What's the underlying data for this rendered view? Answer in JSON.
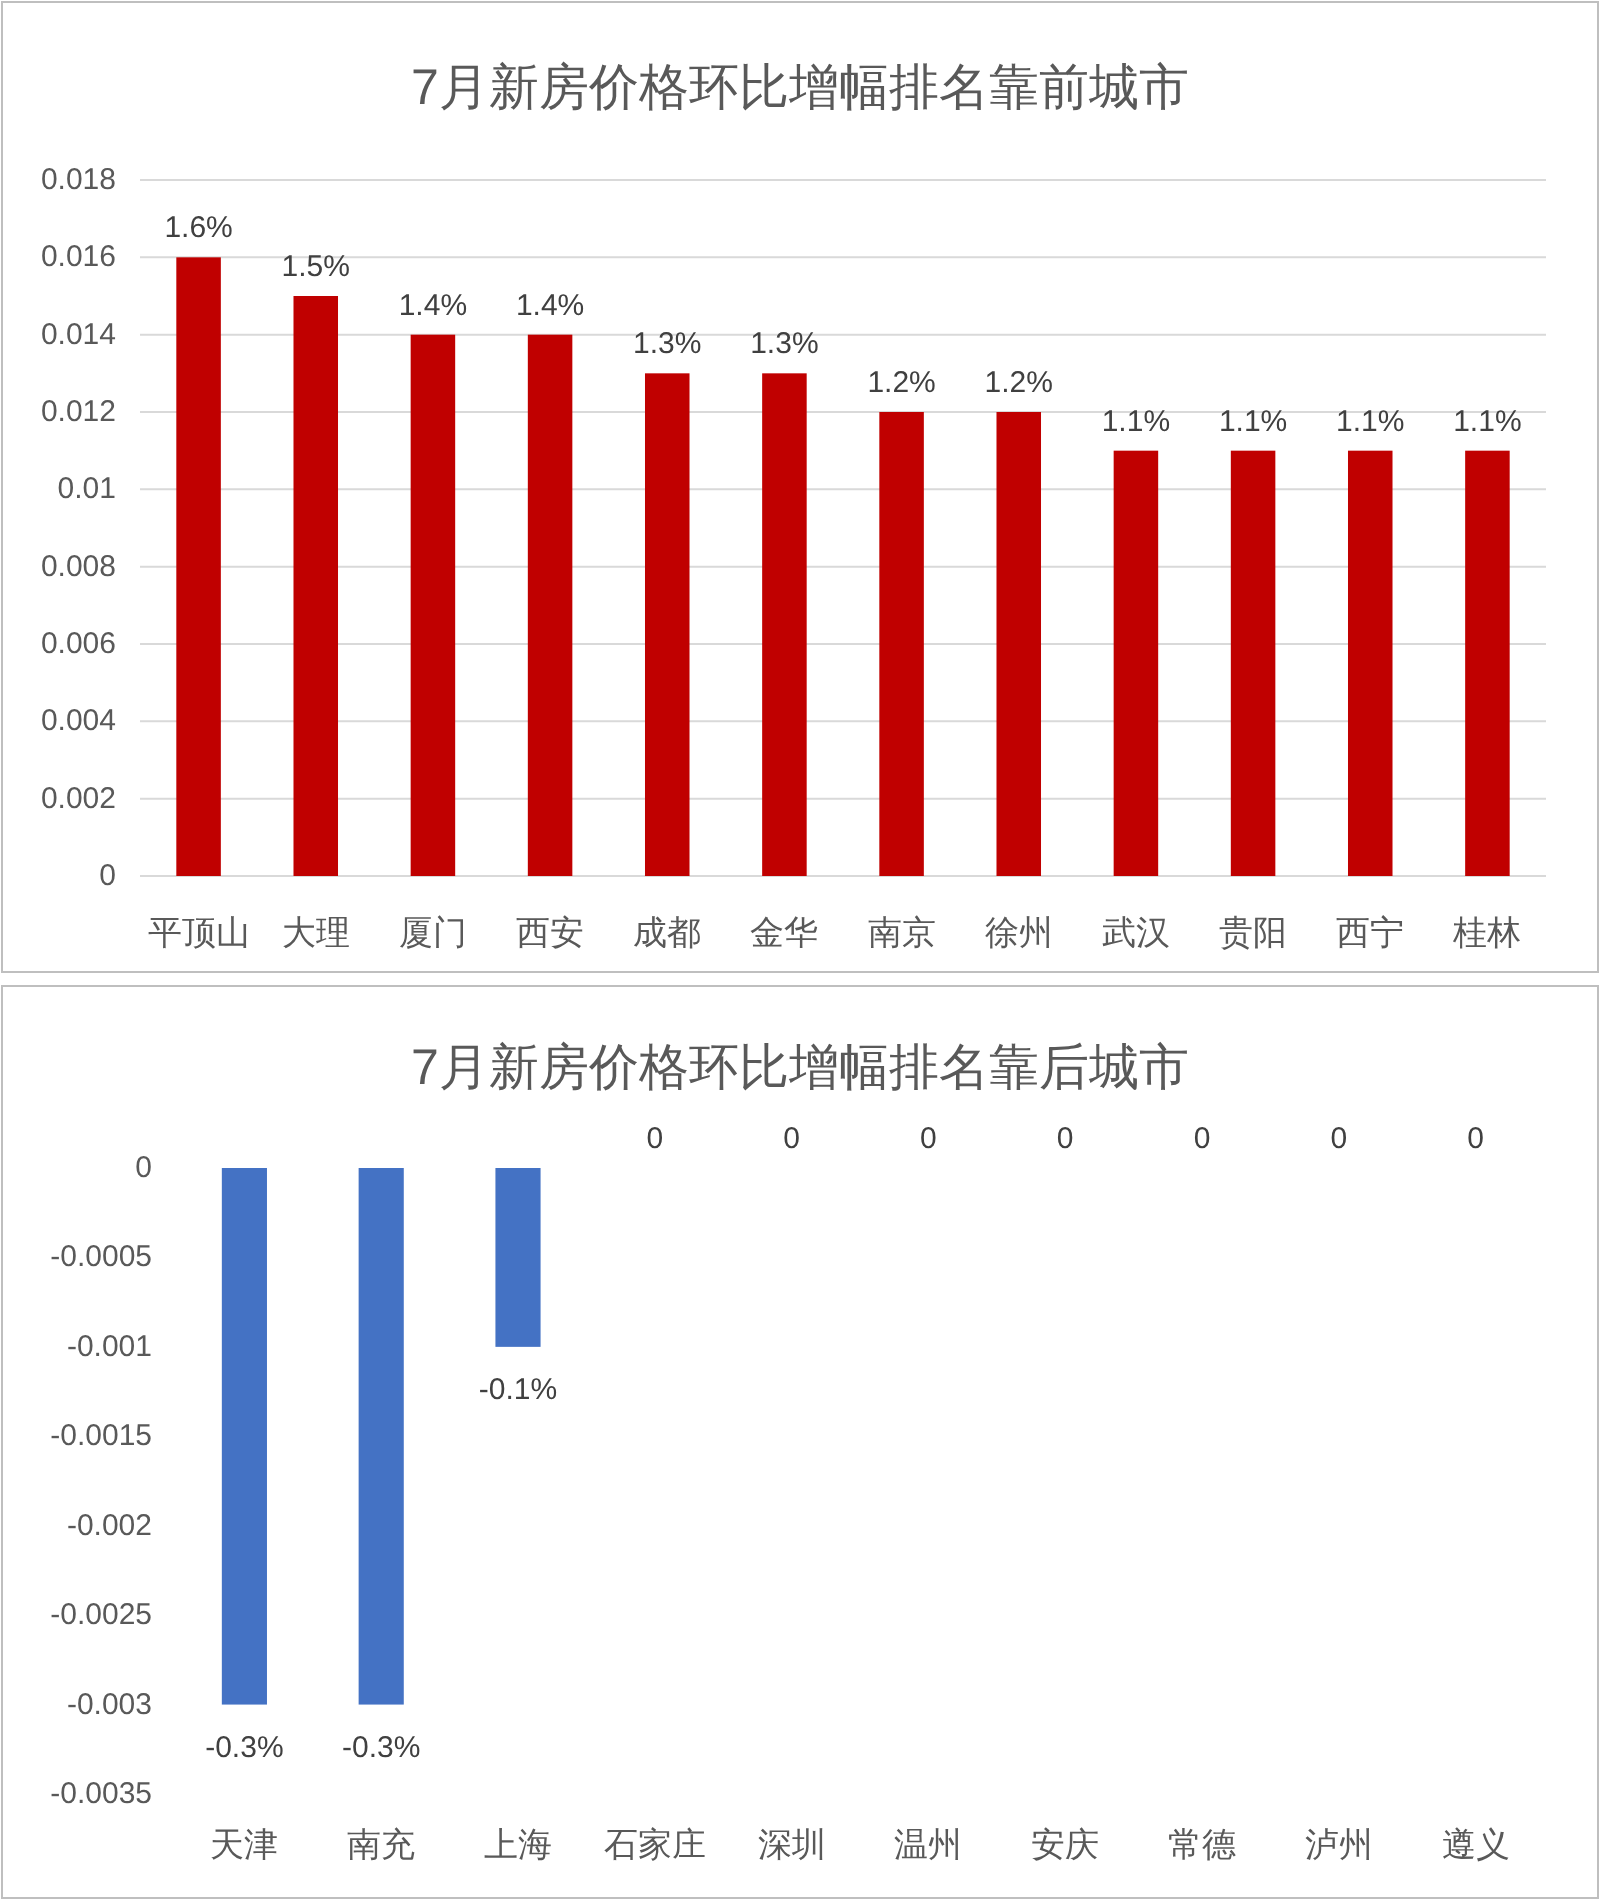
{
  "chart_data": [
    {
      "type": "bar",
      "title": "7月新房价格环比增幅排名靠前城市",
      "categories": [
        "平顶山",
        "大理",
        "厦门",
        "西安",
        "成都",
        "金华",
        "南京",
        "徐州",
        "武汉",
        "贵阳",
        "西宁",
        "桂林"
      ],
      "values": [
        0.016,
        0.015,
        0.014,
        0.014,
        0.013,
        0.013,
        0.012,
        0.012,
        0.011,
        0.011,
        0.011,
        0.011
      ],
      "value_labels": [
        "1.6%",
        "1.5%",
        "1.4%",
        "1.4%",
        "1.3%",
        "1.3%",
        "1.2%",
        "1.2%",
        "1.1%",
        "1.1%",
        "1.1%",
        "1.1%"
      ],
      "color": "#c00000",
      "ylim": [
        0,
        0.018
      ],
      "yticks": [
        0,
        0.002,
        0.004,
        0.006,
        0.008,
        0.01,
        0.012,
        0.014,
        0.016,
        0.018
      ],
      "grid": "y"
    },
    {
      "type": "bar",
      "title": "7月新房价格环比增幅排名靠后城市",
      "categories": [
        "天津",
        "南充",
        "上海",
        "石家庄",
        "深圳",
        "温州",
        "安庆",
        "常德",
        "泸州",
        "遵义"
      ],
      "values": [
        -0.003,
        -0.003,
        -0.001,
        0,
        0,
        0,
        0,
        0,
        0,
        0
      ],
      "value_labels": [
        "-0.3%",
        "-0.3%",
        "-0.1%",
        "0",
        "0",
        "0",
        "0",
        "0",
        "0",
        "0"
      ],
      "color": "#4472c4",
      "ylim": [
        -0.0035,
        0
      ],
      "yticks": [
        0,
        -0.0005,
        -0.001,
        -0.0015,
        -0.002,
        -0.0025,
        -0.003,
        -0.0035
      ],
      "grid": false
    }
  ]
}
